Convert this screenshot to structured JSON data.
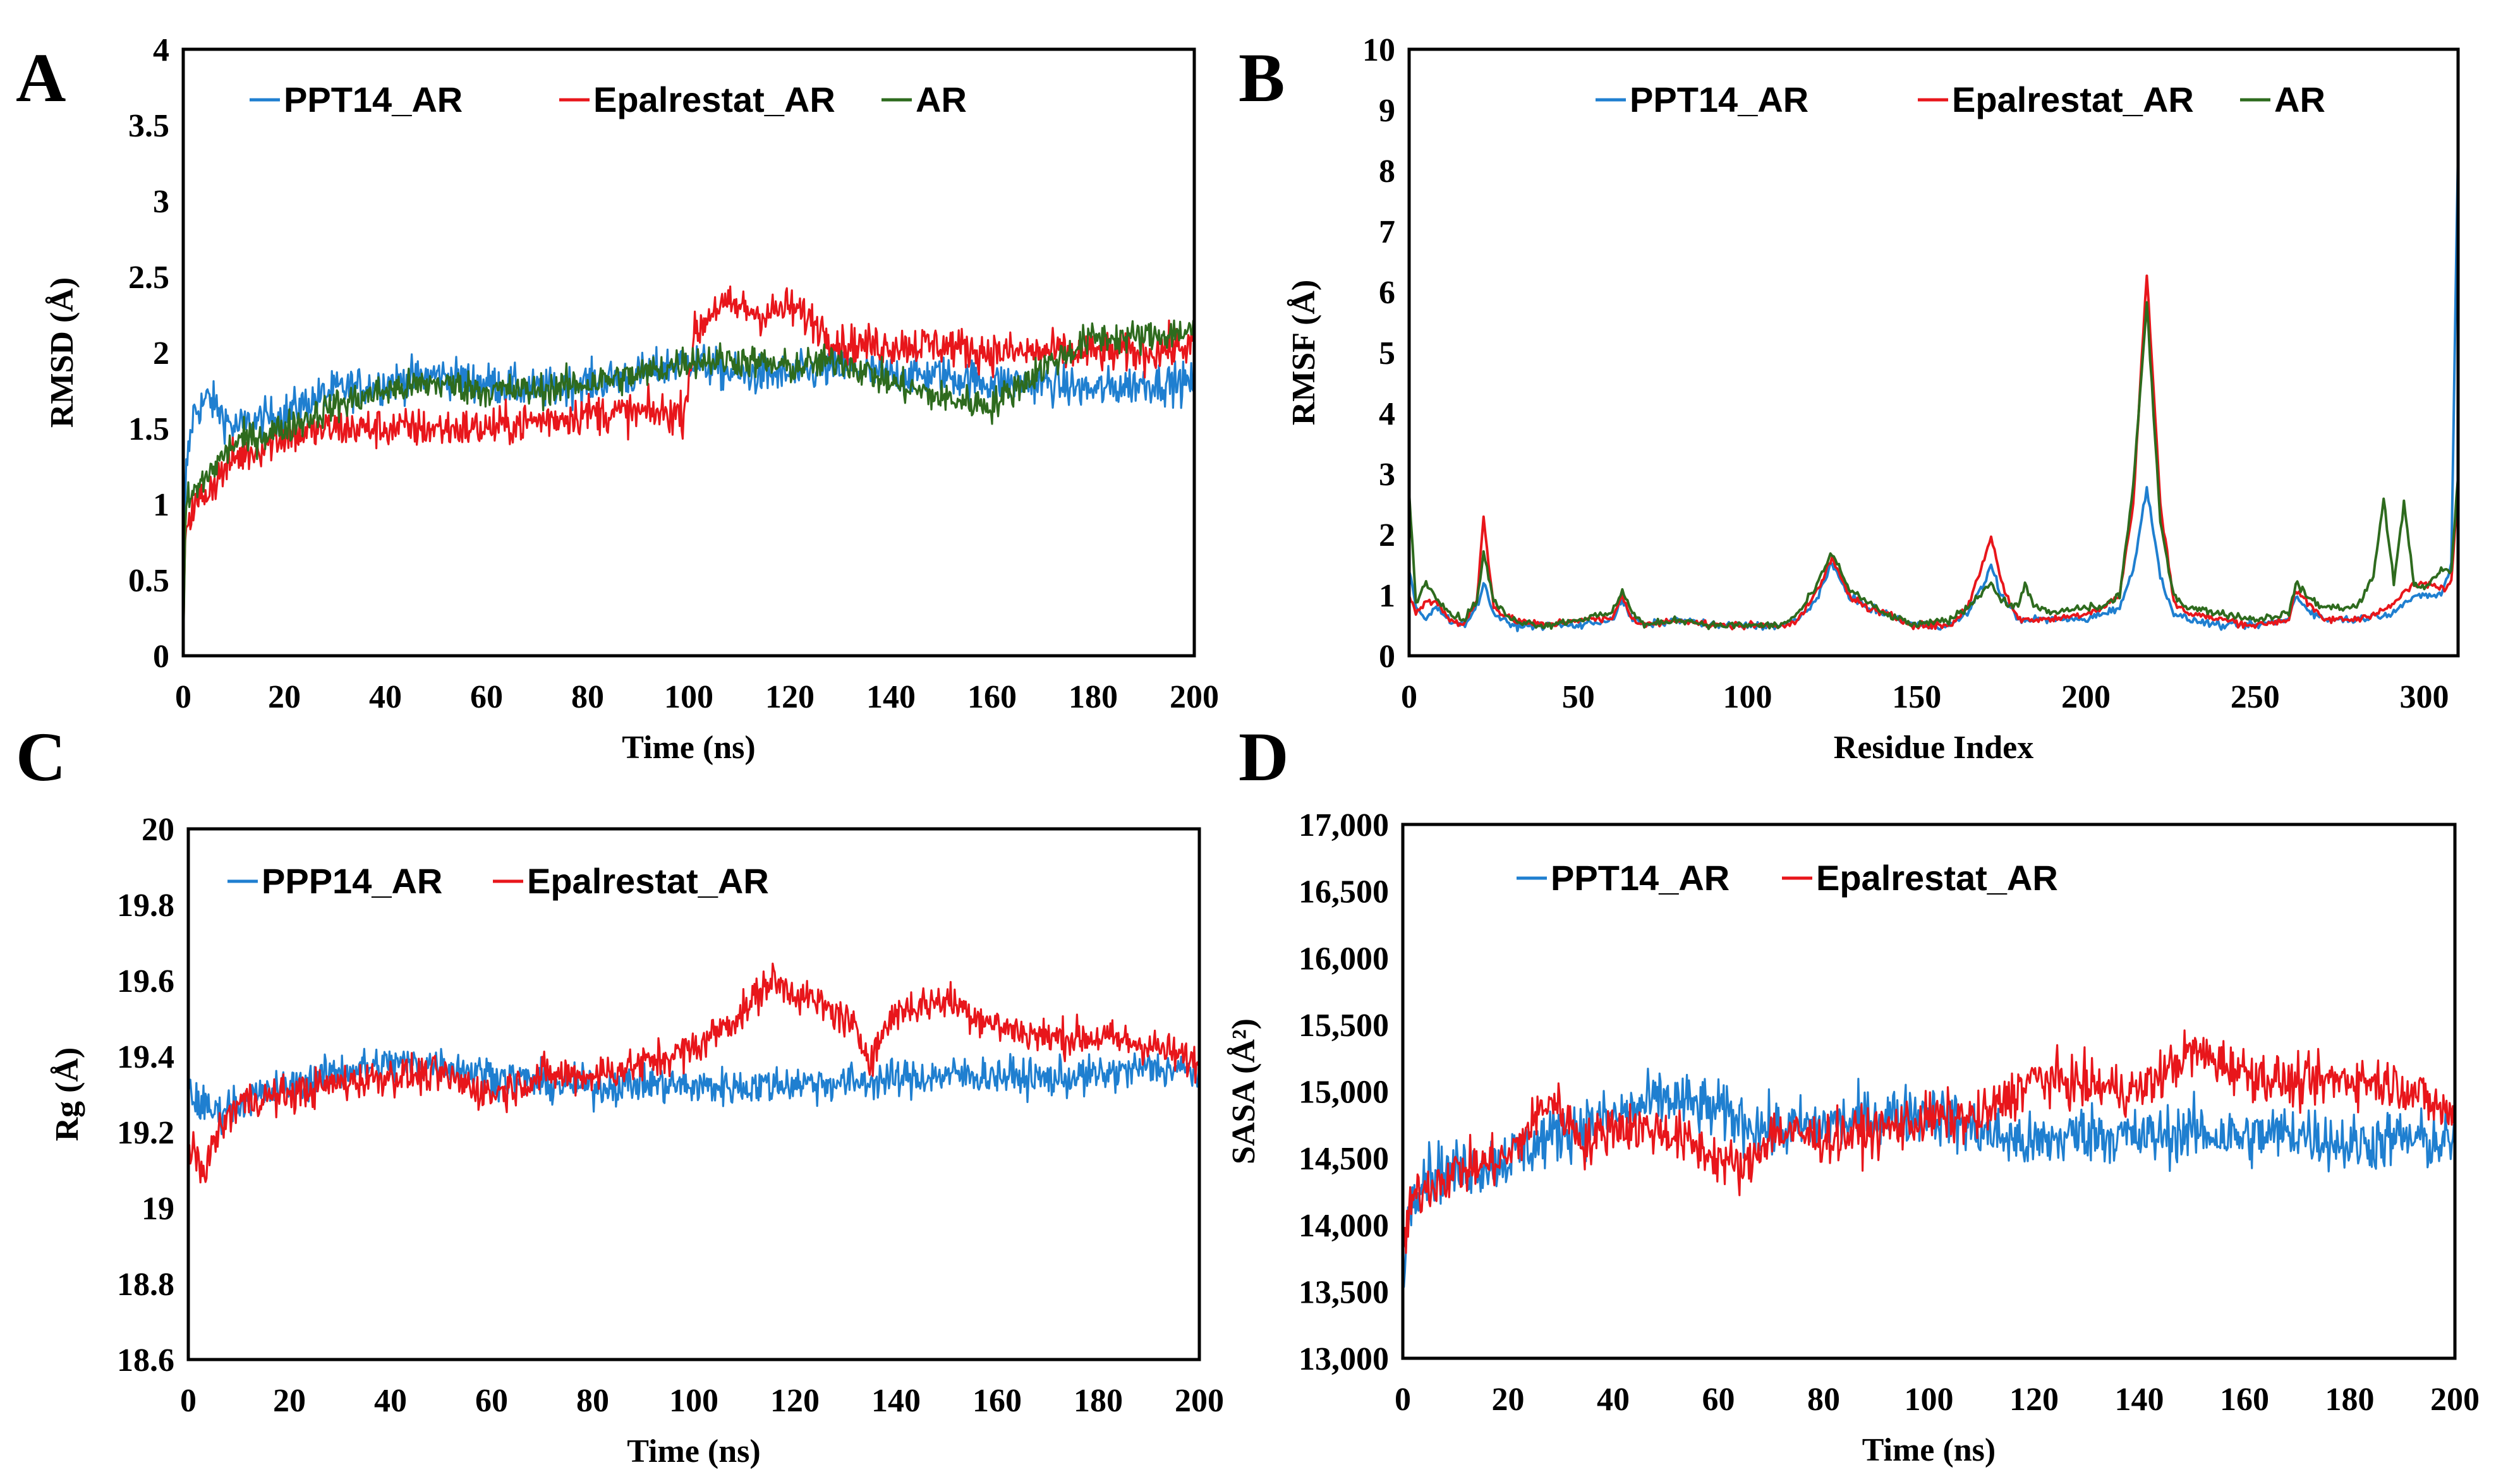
{
  "colors": {
    "blue": "#1f7fd0",
    "red": "#e8161b",
    "green": "#2e6b1e"
  },
  "chart_data": [
    {
      "panel": "A",
      "type": "line",
      "xlabel": "Time (ns)",
      "ylabel": "RMSD (Å)",
      "xlim": [
        0,
        200
      ],
      "ylim": [
        0,
        4
      ],
      "xticks": [
        "0",
        "20",
        "40",
        "60",
        "80",
        "100",
        "120",
        "140",
        "160",
        "180",
        "200"
      ],
      "yticks": [
        "0",
        "0.5",
        "1",
        "1.5",
        "2",
        "2.5",
        "3",
        "3.5",
        "4"
      ],
      "legend": "top-left, inside",
      "grid": false,
      "series": [
        {
          "name": "PPT14_AR",
          "color": "#1f7fd0",
          "noise": 0.12,
          "x": [
            0,
            0.5,
            2,
            5,
            10,
            20,
            30,
            40,
            50,
            60,
            70,
            80,
            90,
            100,
            110,
            120,
            130,
            140,
            150,
            160,
            170,
            180,
            190,
            200
          ],
          "y": [
            0,
            1.2,
            1.6,
            1.7,
            1.5,
            1.6,
            1.75,
            1.8,
            1.85,
            1.8,
            1.75,
            1.8,
            1.85,
            1.95,
            1.85,
            1.85,
            1.9,
            1.85,
            1.85,
            1.8,
            1.8,
            1.75,
            1.8,
            1.8
          ]
        },
        {
          "name": "Epalrestat_AR",
          "color": "#e8161b",
          "noise": 0.12,
          "x": [
            0,
            0.5,
            5,
            10,
            20,
            30,
            40,
            50,
            60,
            70,
            80,
            90,
            99,
            101,
            105,
            110,
            115,
            120,
            125,
            130,
            140,
            150,
            160,
            170,
            180,
            190,
            200
          ],
          "y": [
            0,
            0.9,
            1.1,
            1.3,
            1.45,
            1.5,
            1.5,
            1.5,
            1.5,
            1.55,
            1.6,
            1.6,
            1.6,
            2.1,
            2.3,
            2.3,
            2.25,
            2.3,
            2.2,
            2.05,
            2.05,
            2.05,
            2.0,
            2.0,
            2.0,
            2.0,
            2.05
          ]
        },
        {
          "name": "AR",
          "color": "#2e6b1e",
          "noise": 0.1,
          "x": [
            0,
            0.5,
            5,
            10,
            20,
            30,
            40,
            50,
            60,
            70,
            80,
            90,
            100,
            110,
            120,
            130,
            140,
            150,
            160,
            170,
            180,
            190,
            200
          ],
          "y": [
            0,
            1.0,
            1.2,
            1.4,
            1.5,
            1.65,
            1.75,
            1.8,
            1.75,
            1.75,
            1.8,
            1.85,
            1.95,
            1.95,
            1.9,
            1.95,
            1.8,
            1.7,
            1.65,
            1.9,
            2.1,
            2.1,
            2.15
          ]
        }
      ]
    },
    {
      "panel": "B",
      "type": "line",
      "xlabel": "Residue Index",
      "ylabel": "RMSF (Å)",
      "xlim": [
        0,
        310
      ],
      "ylim": [
        0,
        10
      ],
      "xticks": [
        "0",
        "50",
        "100",
        "150",
        "200",
        "250",
        "300"
      ],
      "yticks": [
        "0",
        "1",
        "2",
        "3",
        "4",
        "5",
        "6",
        "7",
        "8",
        "9",
        "10"
      ],
      "legend": "top-right, inside",
      "grid": false,
      "series": [
        {
          "name": "PPT14_AR",
          "color": "#1f7fd0",
          "noise": 0.05,
          "x": [
            0,
            2,
            5,
            8,
            12,
            16,
            20,
            22,
            25,
            30,
            40,
            50,
            60,
            63,
            66,
            70,
            80,
            90,
            100,
            110,
            115,
            120,
            125,
            130,
            135,
            140,
            150,
            160,
            165,
            170,
            172,
            175,
            180,
            190,
            200,
            205,
            210,
            214,
            218,
            222,
            226,
            230,
            240,
            250,
            260,
            262,
            265,
            270,
            280,
            290,
            295,
            300,
            305,
            308,
            310
          ],
          "y": [
            1.4,
            0.8,
            0.6,
            0.8,
            0.6,
            0.5,
            0.8,
            1.2,
            0.7,
            0.5,
            0.5,
            0.5,
            0.6,
            0.9,
            0.6,
            0.5,
            0.6,
            0.5,
            0.5,
            0.5,
            0.6,
            0.9,
            1.5,
            1.0,
            0.8,
            0.7,
            0.5,
            0.5,
            0.7,
            1.2,
            1.5,
            1.0,
            0.6,
            0.6,
            0.6,
            0.7,
            0.8,
            1.4,
            2.8,
            1.3,
            0.7,
            0.6,
            0.5,
            0.5,
            0.6,
            1.0,
            0.8,
            0.6,
            0.6,
            0.7,
            0.9,
            1.0,
            1.0,
            1.5,
            8.4
          ]
        },
        {
          "name": "Epalrestat_AR",
          "color": "#e8161b",
          "noise": 0.05,
          "x": [
            0,
            2,
            5,
            8,
            12,
            16,
            20,
            22,
            25,
            30,
            40,
            50,
            60,
            63,
            66,
            70,
            80,
            90,
            100,
            110,
            115,
            120,
            125,
            130,
            135,
            140,
            150,
            160,
            165,
            170,
            172,
            175,
            180,
            190,
            200,
            205,
            210,
            214,
            218,
            222,
            226,
            230,
            240,
            250,
            260,
            262,
            265,
            270,
            280,
            290,
            295,
            300,
            305,
            308,
            310
          ],
          "y": [
            1.0,
            0.7,
            0.9,
            0.9,
            0.6,
            0.5,
            0.9,
            2.3,
            0.8,
            0.6,
            0.5,
            0.6,
            0.6,
            1.0,
            0.6,
            0.5,
            0.6,
            0.5,
            0.5,
            0.5,
            0.6,
            1.0,
            1.6,
            1.0,
            0.8,
            0.7,
            0.5,
            0.5,
            0.8,
            1.6,
            2.0,
            1.2,
            0.6,
            0.6,
            0.7,
            0.8,
            1.0,
            2.5,
            6.3,
            2.5,
            0.9,
            0.7,
            0.6,
            0.5,
            0.6,
            1.1,
            0.9,
            0.6,
            0.6,
            0.8,
            1.1,
            1.2,
            1.1,
            1.2,
            2.8
          ]
        },
        {
          "name": "AR",
          "color": "#2e6b1e",
          "noise": 0.05,
          "x": [
            0,
            2,
            5,
            8,
            12,
            16,
            20,
            22,
            25,
            30,
            40,
            50,
            60,
            63,
            66,
            70,
            80,
            90,
            100,
            110,
            115,
            120,
            125,
            130,
            135,
            140,
            150,
            160,
            165,
            170,
            172,
            175,
            180,
            182,
            185,
            190,
            200,
            205,
            210,
            214,
            218,
            222,
            226,
            230,
            240,
            250,
            260,
            262,
            265,
            270,
            280,
            285,
            288,
            291,
            294,
            297,
            300,
            305,
            308,
            310
          ],
          "y": [
            2.7,
            0.9,
            1.2,
            1.0,
            0.7,
            0.6,
            0.9,
            1.7,
            0.9,
            0.6,
            0.5,
            0.6,
            0.7,
            1.1,
            0.7,
            0.5,
            0.6,
            0.5,
            0.5,
            0.5,
            0.7,
            1.1,
            1.7,
            1.1,
            0.9,
            0.7,
            0.5,
            0.6,
            0.8,
            1.1,
            1.2,
            0.9,
            0.8,
            1.2,
            0.8,
            0.7,
            0.8,
            0.8,
            1.0,
            2.8,
            5.8,
            2.2,
            1.0,
            0.8,
            0.7,
            0.6,
            0.7,
            1.2,
            1.0,
            0.8,
            0.8,
            1.3,
            2.6,
            1.2,
            2.5,
            1.2,
            1.1,
            1.4,
            1.4,
            3.0
          ]
        }
      ]
    },
    {
      "panel": "C",
      "type": "line",
      "xlabel": "Time (ns)",
      "ylabel": "Rg (Å)",
      "xlim": [
        0,
        200
      ],
      "ylim": [
        18.6,
        20
      ],
      "xticks": [
        "0",
        "20",
        "40",
        "60",
        "80",
        "100",
        "120",
        "140",
        "160",
        "180",
        "200"
      ],
      "yticks": [
        "18.6",
        "18.8",
        "19",
        "19.2",
        "19.4",
        "19.6",
        "19.8",
        "20"
      ],
      "legend": "top-left, inside",
      "grid": false,
      "series": [
        {
          "name": "PPP14_AR",
          "color": "#1f7fd0",
          "noise": 0.045,
          "x": [
            0,
            5,
            10,
            20,
            30,
            40,
            50,
            60,
            70,
            80,
            90,
            100,
            110,
            120,
            130,
            140,
            150,
            160,
            170,
            180,
            190,
            200
          ],
          "y": [
            19.3,
            19.25,
            19.28,
            19.32,
            19.36,
            19.38,
            19.38,
            19.35,
            19.33,
            19.32,
            19.33,
            19.32,
            19.32,
            19.33,
            19.33,
            19.34,
            19.35,
            19.35,
            19.34,
            19.35,
            19.37,
            19.36
          ]
        },
        {
          "name": "Epalrestat_AR",
          "color": "#e8161b",
          "noise": 0.045,
          "x": [
            0,
            3,
            6,
            10,
            20,
            30,
            40,
            50,
            60,
            70,
            80,
            90,
            100,
            110,
            115,
            120,
            130,
            135,
            140,
            150,
            160,
            170,
            180,
            190,
            200
          ],
          "y": [
            19.15,
            19.1,
            19.2,
            19.28,
            19.3,
            19.33,
            19.35,
            19.35,
            19.3,
            19.35,
            19.35,
            19.38,
            19.42,
            19.52,
            19.6,
            19.57,
            19.5,
            19.4,
            19.52,
            19.55,
            19.48,
            19.45,
            19.45,
            19.43,
            19.38
          ]
        }
      ]
    },
    {
      "panel": "D",
      "type": "line",
      "xlabel": "Time (ns)",
      "ylabel": "SASA (Å²)",
      "xlim": [
        0,
        200
      ],
      "ylim": [
        13000,
        17000
      ],
      "xticks": [
        "0",
        "20",
        "40",
        "60",
        "80",
        "100",
        "120",
        "140",
        "160",
        "180",
        "200"
      ],
      "yticks": [
        "13,000",
        "13,500",
        "14,000",
        "14,500",
        "15,000",
        "15,500",
        "16,000",
        "16,500",
        "17,000"
      ],
      "legend": "top-left, inside",
      "grid": false,
      "series": [
        {
          "name": "PPT14_AR",
          "color": "#1f7fd0",
          "noise": 200,
          "x": [
            0,
            2,
            5,
            10,
            20,
            30,
            40,
            50,
            60,
            70,
            80,
            90,
            100,
            110,
            120,
            130,
            140,
            150,
            160,
            170,
            180,
            190,
            200
          ],
          "y": [
            13700,
            14300,
            14400,
            14400,
            14500,
            14700,
            14800,
            14950,
            14850,
            14700,
            14750,
            14800,
            14850,
            14700,
            14600,
            14700,
            14650,
            14700,
            14650,
            14700,
            14600,
            14650,
            14600
          ]
        },
        {
          "name": "Epalrestat_AR",
          "color": "#e8161b",
          "noise": 170,
          "x": [
            0,
            2,
            5,
            10,
            20,
            28,
            35,
            40,
            50,
            60,
            65,
            70,
            80,
            90,
            100,
            110,
            120,
            130,
            140,
            150,
            160,
            170,
            180,
            190,
            200
          ],
          "y": [
            13800,
            14200,
            14300,
            14400,
            14500,
            14950,
            14600,
            14750,
            14700,
            14500,
            14400,
            14700,
            14650,
            14700,
            14800,
            14800,
            15100,
            15050,
            15000,
            15300,
            15150,
            15050,
            15100,
            15050,
            14800
          ]
        }
      ]
    }
  ]
}
